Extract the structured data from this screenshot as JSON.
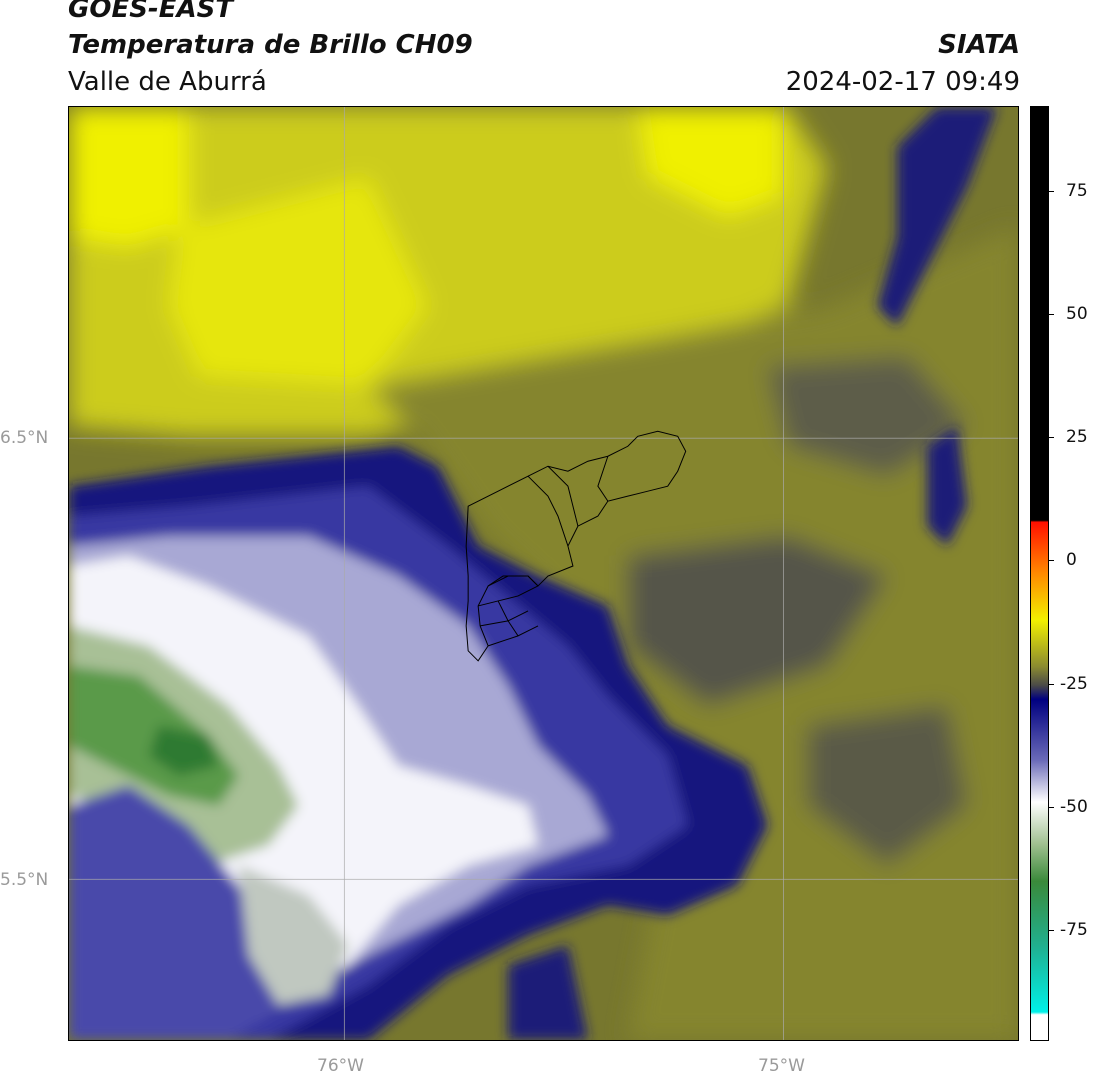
{
  "header": {
    "title_line1": "GOES-EAST",
    "title_line2": "Temperatura de Brillo CH09",
    "subtitle": "Valle de Aburrá",
    "organization": "SIATA",
    "datetime": "2024-02-17 09:49"
  },
  "map": {
    "lat_labels": [
      "6.5°N",
      "5.5°N"
    ],
    "lon_labels": [
      "76°W",
      "75°W"
    ]
  },
  "colorbar": {
    "ticks": [
      "75",
      "50",
      "25",
      "0",
      "-25",
      "-50",
      "-75"
    ],
    "tick_values": [
      75,
      50,
      25,
      0,
      -25,
      -50,
      -75
    ],
    "range": [
      -95,
      90
    ],
    "colors": {
      "hot": "#000000",
      "red": "#ff2000",
      "orange": "#ff8a00",
      "yellow": "#f2f000",
      "olive": "#8a8a30",
      "gray_olive": "#4a4a48",
      "navy": "#000080",
      "blue": "#3a3aa0",
      "lavender": "#b0b0d8",
      "white": "#ffffff",
      "light_green": "#b0c8a0",
      "green": "#3a8a3a",
      "teal": "#20a080",
      "cyan": "#00e8e0"
    }
  }
}
